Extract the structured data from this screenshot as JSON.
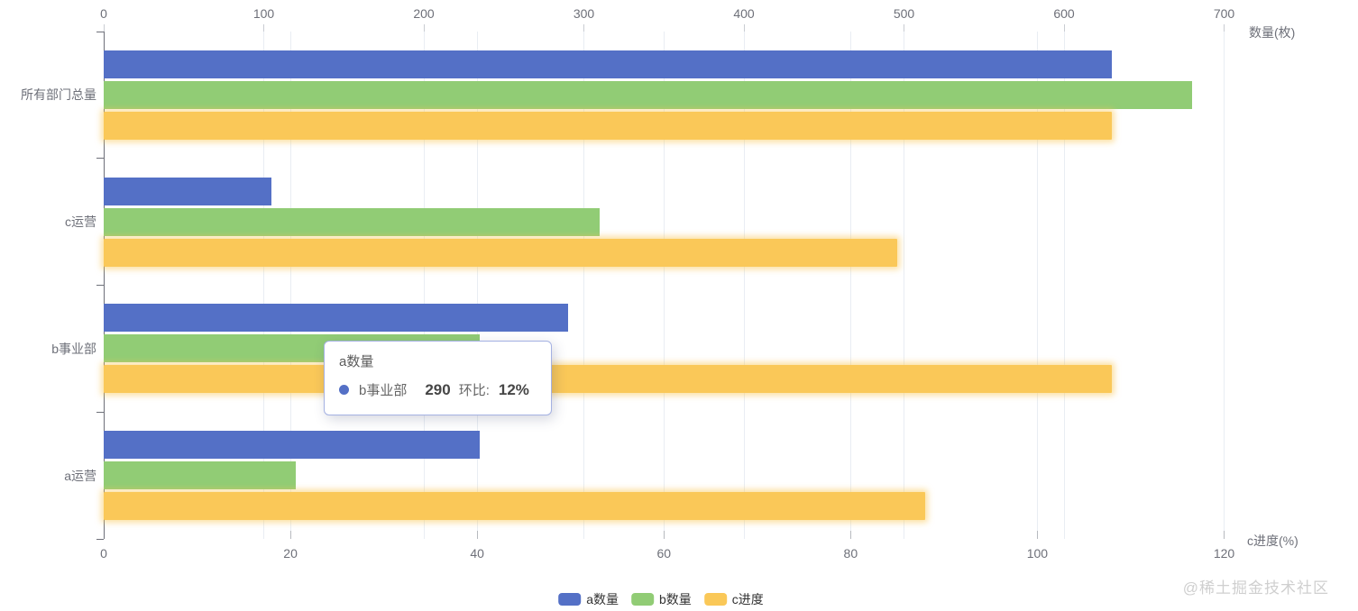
{
  "watermark": "@稀土掘金技术社区",
  "tooltip": {
    "title": "a数量",
    "marker_color": "#5470c6",
    "name": "b事业部",
    "value": "290",
    "ratio_label": "环比:",
    "ratio_value": "12%"
  },
  "chart_data": {
    "type": "bar",
    "orientation": "horizontal",
    "grid": true,
    "categories": [
      "所有部门总量",
      "c运营",
      "b事业部",
      "a运营"
    ],
    "series": [
      {
        "name": "a数量",
        "key": "a-quantity",
        "color": "#5470c6",
        "axis": "top",
        "values": [
          630,
          105,
          290,
          235
        ]
      },
      {
        "name": "b数量",
        "key": "b-quantity",
        "color": "#91cc75",
        "axis": "top",
        "values": [
          680,
          310,
          235,
          120
        ]
      },
      {
        "name": "c进度",
        "key": "c-progress",
        "color": "#fac858",
        "axis": "bottom",
        "values": [
          108,
          85,
          108,
          88
        ],
        "glow": true
      }
    ],
    "top_axis": {
      "name": "数量(枚)",
      "min": 0,
      "max": 700,
      "ticks": [
        0,
        100,
        200,
        300,
        400,
        500,
        600,
        700
      ]
    },
    "bottom_axis": {
      "name": "c进度(%)",
      "min": 0,
      "max": 120,
      "ticks": [
        0,
        20,
        40,
        60,
        80,
        100,
        120
      ]
    },
    "legend": {
      "position": "bottom-center",
      "items": [
        {
          "label": "a数量",
          "color": "#5470c6"
        },
        {
          "label": "b数量",
          "color": "#91cc75"
        },
        {
          "label": "c进度",
          "color": "#fac858"
        }
      ]
    }
  }
}
